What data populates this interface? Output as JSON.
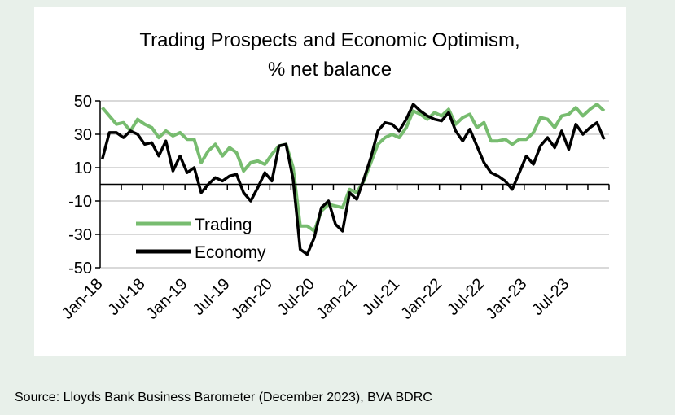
{
  "chart_data": {
    "type": "line",
    "title": [
      "Trading Prospects and Economic Optimism,",
      "% net balance"
    ],
    "xlabel": "",
    "ylabel": "",
    "ylim": [
      -50,
      50
    ],
    "yticks": [
      50,
      30,
      10,
      -10,
      -30,
      -50
    ],
    "grid": true,
    "legend": "center-left",
    "start_month": "Jan-18",
    "x_tick_labels": [
      "Jan-18",
      "Jul-18",
      "Jan-19",
      "Jul-19",
      "Jan-20",
      "Jul-20",
      "Jan-21",
      "Jul-21",
      "Jan-22",
      "Jul-22",
      "Jan-23",
      "Jul-23"
    ],
    "series": [
      {
        "name": "Trading",
        "color": "#77bc6f",
        "values": [
          46,
          41,
          36,
          37,
          32,
          39,
          36,
          34,
          28,
          32,
          29,
          31,
          27,
          27,
          13,
          20,
          24,
          17,
          22,
          19,
          8,
          13,
          14,
          12,
          18,
          23,
          24,
          10,
          -25,
          -25,
          -28,
          -16,
          -12,
          -13,
          -14,
          -3,
          -5,
          2,
          13,
          24,
          28,
          30,
          28,
          34,
          44,
          42,
          39,
          43,
          41,
          45,
          36,
          40,
          42,
          34,
          37,
          26,
          26,
          27,
          24,
          27,
          27,
          31,
          40,
          39,
          34,
          41,
          42,
          46,
          41,
          45,
          48,
          44
        ]
      },
      {
        "name": "Economy",
        "color": "#000000",
        "values": [
          15,
          31,
          31,
          28,
          32,
          30,
          24,
          25,
          17,
          26,
          8,
          17,
          7,
          10,
          -5,
          0,
          4,
          2,
          5,
          6,
          -5,
          -10,
          -2,
          7,
          2,
          23,
          24,
          3,
          -39,
          -42,
          -32,
          -14,
          -10,
          -24,
          -28,
          -5,
          -9,
          3,
          16,
          32,
          37,
          36,
          32,
          39,
          48,
          44,
          41,
          39,
          38,
          43,
          32,
          26,
          33,
          23,
          13,
          7,
          5,
          2,
          -3,
          7,
          17,
          12,
          23,
          28,
          22,
          32,
          21,
          36,
          30,
          34,
          37,
          27
        ]
      }
    ]
  },
  "source": "Source: Lloyds Bank Business Barometer (December 2023), BVA BDRC"
}
